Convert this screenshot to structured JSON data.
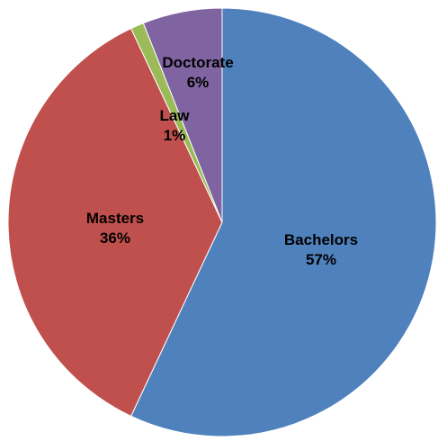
{
  "chart_data": {
    "type": "pie",
    "start_angle_deg": 0,
    "direction": "clockwise",
    "slices": [
      {
        "label": "Bachelors",
        "value": 57,
        "value_label": "57%",
        "color": "#4F81BD"
      },
      {
        "label": "Masters",
        "value": 36,
        "value_label": "36%",
        "color": "#C0504D"
      },
      {
        "label": "Law",
        "value": 1,
        "value_label": "1%",
        "color": "#9BBB59"
      },
      {
        "label": "Doctorate",
        "value": 6,
        "value_label": "6%",
        "color": "#8064A2"
      }
    ]
  }
}
